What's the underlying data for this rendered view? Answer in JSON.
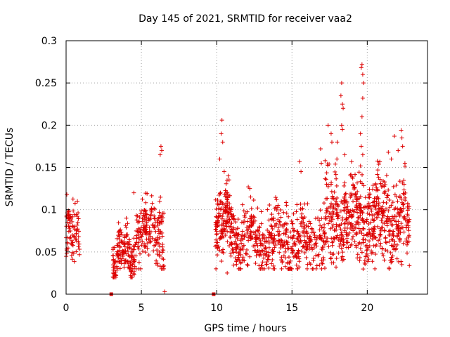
{
  "colors": {
    "series": "#dd0000"
  },
  "chart_data": {
    "type": "scatter",
    "title": "Day 145 of 2021, SRMTID for receiver vaa2",
    "xlabel": "GPS time / hours",
    "ylabel": "SRMTID / TECUs",
    "xlim": [
      0,
      24
    ],
    "ylim": [
      0,
      0.3
    ],
    "grid": true,
    "marker": "plus",
    "x_ticks": [
      {
        "value": 0,
        "label": "0"
      },
      {
        "value": 5,
        "label": "5"
      },
      {
        "value": 10,
        "label": "10"
      },
      {
        "value": 15,
        "label": "15"
      },
      {
        "value": 20,
        "label": "20"
      }
    ],
    "y_ticks": [
      {
        "value": 0,
        "label": "0"
      },
      {
        "value": 0.05,
        "label": "0.05"
      },
      {
        "value": 0.1,
        "label": "0.1"
      },
      {
        "value": 0.15,
        "label": "0.15"
      },
      {
        "value": 0.2,
        "label": "0.2"
      },
      {
        "value": 0.25,
        "label": "0.25"
      },
      {
        "value": 0.3,
        "label": "0.3"
      }
    ],
    "series": [
      {
        "name": "SRMTID vaa2",
        "clusters": [
          {
            "x_start": 0.0,
            "x_end": 0.9,
            "y_min": 0.035,
            "y_max": 0.118,
            "y_center": 0.068,
            "count": 80
          },
          {
            "x_start": 3.1,
            "x_end": 4.6,
            "y_min": 0.02,
            "y_max": 0.09,
            "y_center": 0.045,
            "count": 170
          },
          {
            "x_start": 4.6,
            "x_end": 6.5,
            "y_min": 0.03,
            "y_max": 0.13,
            "y_center": 0.075,
            "count": 190
          },
          {
            "x_start": 9.9,
            "x_end": 11.2,
            "y_min": 0.03,
            "y_max": 0.14,
            "y_center": 0.08,
            "count": 180
          },
          {
            "x_start": 11.2,
            "x_end": 17.2,
            "y_min": 0.03,
            "y_max": 0.13,
            "y_center": 0.065,
            "count": 520
          },
          {
            "x_start": 17.2,
            "x_end": 19.8,
            "y_min": 0.02,
            "y_max": 0.16,
            "y_center": 0.09,
            "count": 300
          },
          {
            "x_start": 19.8,
            "x_end": 22.8,
            "y_min": 0.03,
            "y_max": 0.16,
            "y_center": 0.085,
            "count": 340
          }
        ],
        "peaks": [
          {
            "x": 0.05,
            "y": 0.118
          },
          {
            "x": 0.75,
            "y": 0.11
          },
          {
            "x": 4.5,
            "y": 0.12
          },
          {
            "x": 6.3,
            "y": 0.175
          },
          {
            "x": 6.35,
            "y": 0.17
          },
          {
            "x": 6.25,
            "y": 0.165
          },
          {
            "x": 6.55,
            "y": 0.003
          },
          {
            "x": 10.35,
            "y": 0.206
          },
          {
            "x": 10.3,
            "y": 0.19
          },
          {
            "x": 10.4,
            "y": 0.18
          },
          {
            "x": 10.2,
            "y": 0.16
          },
          {
            "x": 10.5,
            "y": 0.145
          },
          {
            "x": 10.7,
            "y": 0.025
          },
          {
            "x": 12.1,
            "y": 0.127
          },
          {
            "x": 12.2,
            "y": 0.125
          },
          {
            "x": 15.5,
            "y": 0.157
          },
          {
            "x": 15.6,
            "y": 0.145
          },
          {
            "x": 16.9,
            "y": 0.172
          },
          {
            "x": 16.95,
            "y": 0.155
          },
          {
            "x": 17.2,
            "y": 0.158
          },
          {
            "x": 17.6,
            "y": 0.19
          },
          {
            "x": 17.65,
            "y": 0.18
          },
          {
            "x": 17.4,
            "y": 0.2
          },
          {
            "x": 18.3,
            "y": 0.25
          },
          {
            "x": 18.25,
            "y": 0.235
          },
          {
            "x": 18.35,
            "y": 0.225
          },
          {
            "x": 18.4,
            "y": 0.22
          },
          {
            "x": 18.3,
            "y": 0.2
          },
          {
            "x": 18.35,
            "y": 0.195
          },
          {
            "x": 18.0,
            "y": 0.18
          },
          {
            "x": 18.5,
            "y": 0.165
          },
          {
            "x": 19.65,
            "y": 0.272
          },
          {
            "x": 19.6,
            "y": 0.268
          },
          {
            "x": 19.7,
            "y": 0.26
          },
          {
            "x": 19.75,
            "y": 0.25
          },
          {
            "x": 19.7,
            "y": 0.232
          },
          {
            "x": 19.65,
            "y": 0.21
          },
          {
            "x": 19.55,
            "y": 0.19
          },
          {
            "x": 19.6,
            "y": 0.175
          },
          {
            "x": 19.7,
            "y": 0.165
          },
          {
            "x": 21.4,
            "y": 0.168
          },
          {
            "x": 21.6,
            "y": 0.16
          },
          {
            "x": 21.8,
            "y": 0.187
          },
          {
            "x": 22.25,
            "y": 0.194
          },
          {
            "x": 22.3,
            "y": 0.185
          },
          {
            "x": 22.35,
            "y": 0.175
          },
          {
            "x": 22.05,
            "y": 0.17
          },
          {
            "x": 22.5,
            "y": 0.155
          },
          {
            "x": 22.3,
            "y": 0.035
          }
        ],
        "zero_markers": [
          3.0,
          9.8
        ]
      }
    ]
  }
}
